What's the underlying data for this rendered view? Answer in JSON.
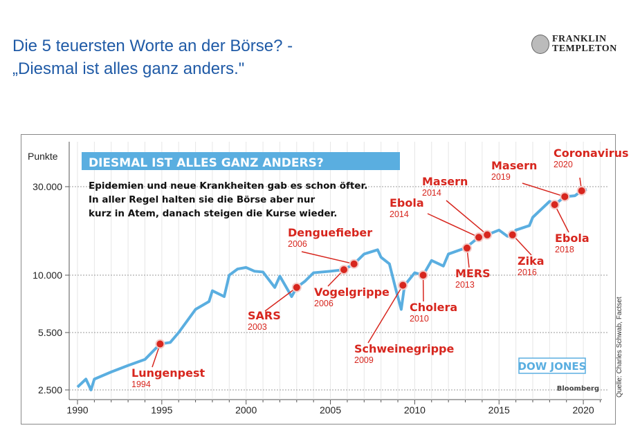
{
  "title": {
    "line1": "Die 5 teuersten Worte an der Börse? -",
    "line2": "„Diesmal ist alles ganz anders.\""
  },
  "logo": {
    "line1": "FRANKLIN",
    "line2": "TEMPLETON"
  },
  "colors": {
    "title": "#1f5aa6",
    "line": "#5aaee0",
    "marker": "#d7261e",
    "banner": "#5aaee0",
    "label": "#d7261e"
  },
  "chart_data": {
    "type": "line",
    "title": "DIESMAL IST ALLES GANZ ANDERS?",
    "subtitle": [
      "Epidemien und neue Krankheiten gab es schon öfter.",
      "In aller Regel halten sie die Börse aber nur",
      "kurz in Atem, danach steigen die Kurse wieder."
    ],
    "ylabel": "Punkte",
    "yscale": "log",
    "yticks": [
      {
        "v": 2500,
        "label": "2.500"
      },
      {
        "v": 5500,
        "label": "5.500"
      },
      {
        "v": 10000,
        "label": "10.000"
      },
      {
        "v": 30000,
        "label": "30.000"
      }
    ],
    "xticks": [
      1990,
      1995,
      2000,
      2005,
      2010,
      2015,
      2020
    ],
    "xlim": [
      1990,
      2022
    ],
    "series": [
      {
        "name": "DOW JONES",
        "x": [
          1990,
          1990.5,
          1990.8,
          1991,
          1992,
          1993,
          1994,
          1994.9,
          1995.5,
          1996,
          1997,
          1997.8,
          1998,
          1998.7,
          1999,
          1999.5,
          2000,
          2000.5,
          2001,
          2001.7,
          2002,
          2002.7,
          2003,
          2003.5,
          2004,
          2005,
          2005.8,
          2006.4,
          2007,
          2007.8,
          2008,
          2008.5,
          2008.9,
          2009.2,
          2009.4,
          2010,
          2010.5,
          2011,
          2011.7,
          2012,
          2013,
          2013.8,
          2014.3,
          2015,
          2015.5,
          2015.8,
          2016,
          2016.8,
          2017,
          2018,
          2018.2,
          2018.3,
          2018.9,
          2019.5,
          2019.9,
          2020.2
        ],
        "y": [
          2600,
          2900,
          2500,
          2900,
          3200,
          3500,
          3800,
          4700,
          4800,
          5500,
          7000,
          7600,
          8500,
          8000,
          10000,
          10800,
          11000,
          10500,
          10400,
          8800,
          9900,
          8000,
          8800,
          9400,
          10300,
          10500,
          10700,
          11500,
          13000,
          13700,
          12500,
          11500,
          8500,
          7000,
          9000,
          10300,
          10000,
          12000,
          11200,
          13000,
          14000,
          16000,
          16500,
          17500,
          16200,
          16500,
          17500,
          18500,
          20500,
          25000,
          24500,
          24000,
          26500,
          26800,
          28500,
          29000
        ]
      }
    ],
    "events": [
      {
        "name": "Lungenpest",
        "year": "1994",
        "x": 1994.9,
        "y": 4700
      },
      {
        "name": "SARS",
        "year": "2003",
        "x": 2003,
        "y": 8800
      },
      {
        "name": "Vogelgrippe",
        "year": "2006",
        "x": 2005.8,
        "y": 10700
      },
      {
        "name": "Denguefieber",
        "year": "2006",
        "x": 2006.4,
        "y": 11500
      },
      {
        "name": "Schweinegrippe",
        "year": "2009",
        "x": 2009.3,
        "y": 9000
      },
      {
        "name": "Cholera",
        "year": "2010",
        "x": 2010.5,
        "y": 10000
      },
      {
        "name": "MERS",
        "year": "2013",
        "x": 2013.1,
        "y": 14000
      },
      {
        "name": "Ebola",
        "year": "2014",
        "x": 2013.8,
        "y": 16000
      },
      {
        "name": "Masern",
        "year": "2014",
        "x": 2014.3,
        "y": 16500
      },
      {
        "name": "Zika",
        "year": "2016",
        "x": 2015.8,
        "y": 16500
      },
      {
        "name": "Ebola",
        "year": "2018",
        "x": 2018.3,
        "y": 24000
      },
      {
        "name": "Masern",
        "year": "2019",
        "x": 2018.9,
        "y": 26500
      },
      {
        "name": "Coronavirus",
        "year": "2020",
        "x": 2019.9,
        "y": 28500
      }
    ],
    "legend": "DOW JONES",
    "source_credit": "Bloomberg",
    "source": "Quelle: Charles Schwab, Factset",
    "grid": true
  }
}
